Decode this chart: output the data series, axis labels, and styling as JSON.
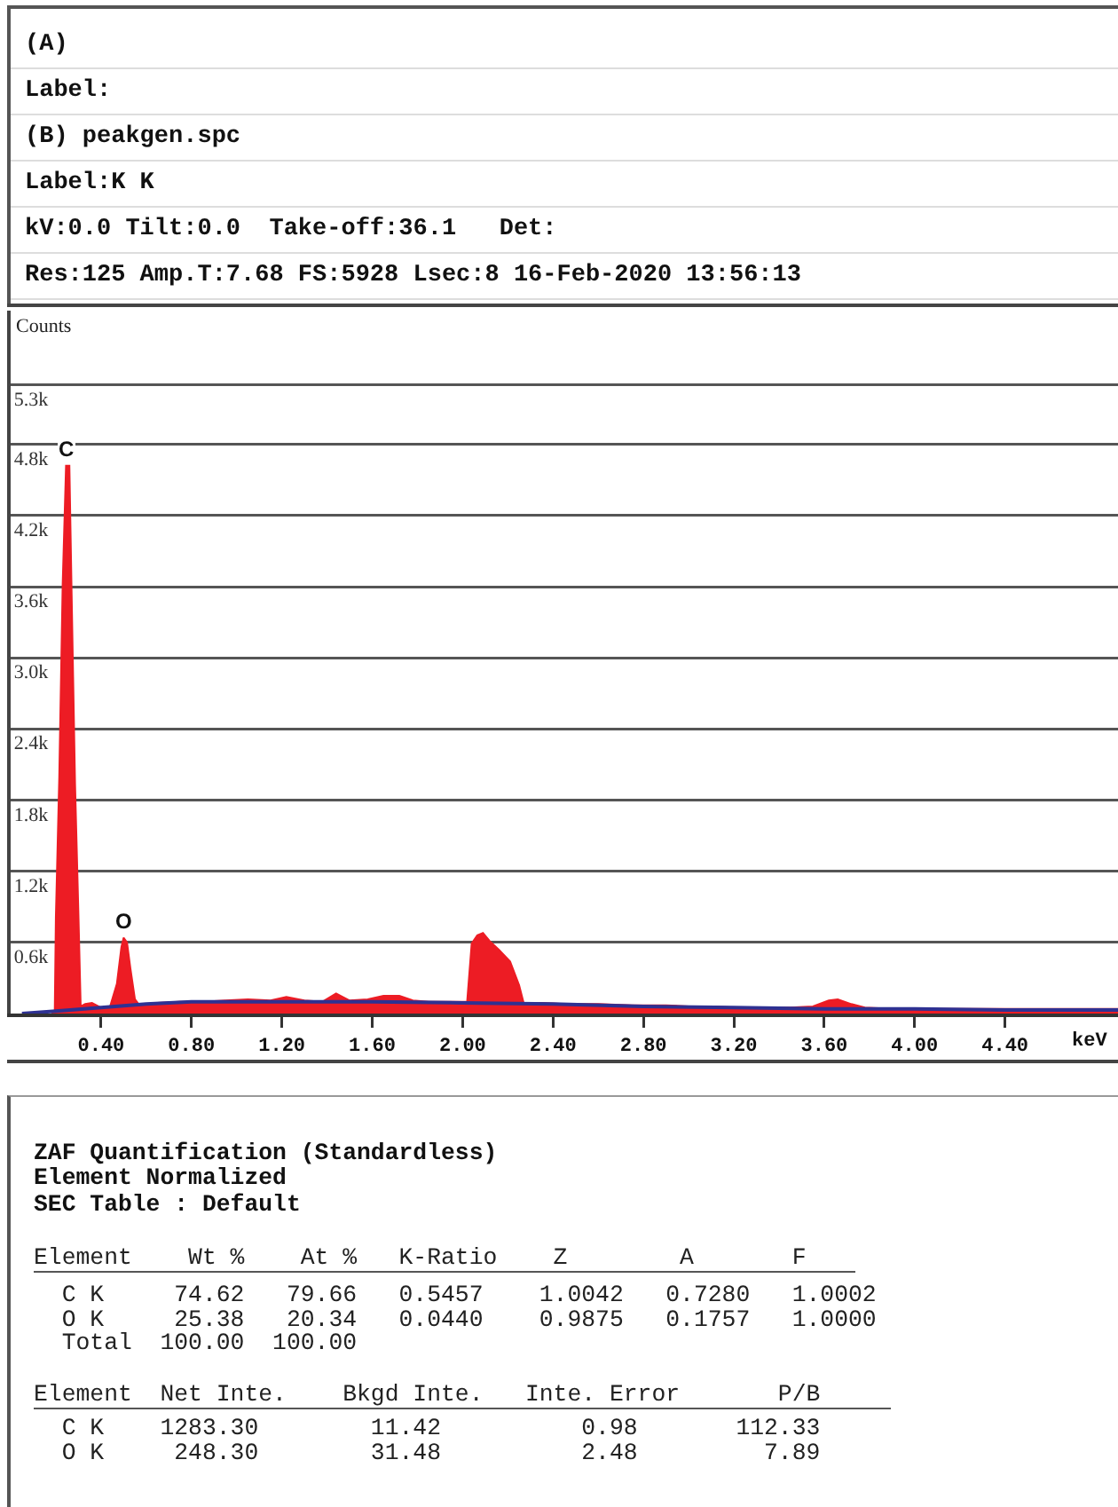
{
  "chart_data": {
    "type": "area",
    "xlabel": "keV",
    "ylabel": "Counts",
    "series": [
      {
        "color": "#ed1c24",
        "x": [
          0.18,
          0.195,
          0.2,
          0.215,
          0.23,
          0.245,
          0.26,
          0.27,
          0.285,
          0.3,
          0.31,
          0.33,
          0.36,
          0.4,
          0.44,
          0.47,
          0.49,
          0.5,
          0.515,
          0.53,
          0.55,
          0.57,
          0.65,
          0.75,
          0.85,
          0.95,
          1.05,
          1.15,
          1.22,
          1.3,
          1.38,
          1.44,
          1.5,
          1.58,
          1.65,
          1.72,
          1.78,
          1.85,
          1.95,
          2.02,
          2.04,
          2.065,
          2.09,
          2.12,
          2.16,
          2.21,
          2.25,
          2.27,
          2.35,
          2.45,
          2.6,
          2.75,
          2.9,
          3.0,
          3.1,
          3.2,
          3.3,
          3.45,
          3.55,
          3.62,
          3.66,
          3.72,
          3.78,
          3.9,
          4.1,
          4.3,
          4.5,
          4.7,
          4.9
        ],
        "values": [
          0,
          0,
          810,
          1990,
          3610,
          4620,
          4620,
          3530,
          1940,
          840,
          60,
          80,
          90,
          50,
          60,
          250,
          560,
          640,
          600,
          380,
          120,
          70,
          90,
          100,
          100,
          110,
          120,
          110,
          140,
          110,
          100,
          170,
          110,
          120,
          150,
          150,
          110,
          100,
          100,
          100,
          590,
          660,
          680,
          610,
          540,
          440,
          240,
          90,
          90,
          80,
          80,
          70,
          70,
          60,
          60,
          50,
          50,
          50,
          60,
          110,
          120,
          80,
          50,
          40,
          40,
          40,
          40,
          40,
          40
        ]
      },
      {
        "type": "line",
        "color": "#2e3192",
        "x": [
          0.05,
          0.2,
          0.4,
          0.6,
          0.8,
          1.0,
          1.3,
          1.6,
          2.0,
          2.4,
          2.8,
          3.2,
          3.6,
          4.0,
          4.4,
          4.9
        ],
        "values": [
          0,
          20,
          50,
          80,
          100,
          100,
          100,
          100,
          90,
          80,
          60,
          50,
          40,
          40,
          30,
          30
        ]
      }
    ],
    "xlim": [
      0,
      4.9
    ],
    "xticks": [
      {
        "value": 0.4,
        "label": "0.40"
      },
      {
        "value": 0.8,
        "label": "0.80"
      },
      {
        "value": 1.2,
        "label": "1.20"
      },
      {
        "value": 1.6,
        "label": "1.60"
      },
      {
        "value": 2.0,
        "label": "2.00"
      },
      {
        "value": 2.4,
        "label": "2.40"
      },
      {
        "value": 2.8,
        "label": "2.80"
      },
      {
        "value": 3.2,
        "label": "3.20"
      },
      {
        "value": 3.6,
        "label": "3.60"
      },
      {
        "value": 4.0,
        "label": "4.00"
      },
      {
        "value": 4.4,
        "label": "4.40"
      }
    ],
    "ylim": [
      0,
      5928
    ],
    "yticks": [
      {
        "value": 600,
        "label": "0.6k"
      },
      {
        "value": 1200,
        "label": "1.2k"
      },
      {
        "value": 1800,
        "label": "1.8k"
      },
      {
        "value": 2400,
        "label": "2.4k"
      },
      {
        "value": 3000,
        "label": "3.0k"
      },
      {
        "value": 3600,
        "label": "3.6k"
      },
      {
        "value": 4200,
        "label": "4.2k"
      },
      {
        "value": 4800,
        "label": "4.8k"
      },
      {
        "value": 5300,
        "label": "5.3k"
      }
    ],
    "grid": "y",
    "annotations": [
      {
        "text": "C",
        "x": 0.25,
        "y": 4620
      },
      {
        "text": "O",
        "x": 0.5,
        "y": 640
      },
      "(A)",
      "Label:",
      "(B) peakgen.spc",
      "Label:K K",
      "kV:0.0 Tilt:0.0  Take-off:36.1   Det:",
      "Res:125 Amp.T:7.68 FS:5928 Lsec:8 16-Feb-2020 13:56:13",
      "ZAF Quantification (Standardless)",
      "Element Normalized",
      "SEC Table : Default",
      "Element    Wt %    At %   K-Ratio    Z        A       F",
      "  C K     74.62   79.66   0.5457    1.0042   0.7280   1.0002",
      "  O K     25.38   20.34   0.0440    0.9875   0.1757   1.0000",
      "  Total  100.00  100.00",
      "Element  Net Inte.    Bkgd Inte.   Inte. Error       P/B",
      "  C K    1283.30        11.42          0.98       112.33",
      "  O K     248.30        31.48          2.48         7.89"
    ]
  }
}
